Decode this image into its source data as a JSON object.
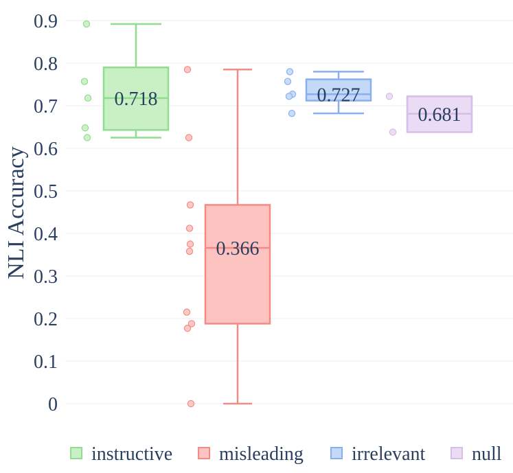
{
  "chart_data": {
    "type": "box",
    "ylabel": "NLI Accuracy",
    "ylim": [
      0,
      0.9
    ],
    "yticks": [
      "0",
      "0.1",
      "0.2",
      "0.3",
      "0.4",
      "0.5",
      "0.6",
      "0.7",
      "0.8",
      "0.9"
    ],
    "grid": true,
    "legend_position": "bottom",
    "series": [
      {
        "name": "instructive",
        "color": "#90dd8f",
        "fill": "#c9f0c4",
        "stats": {
          "min": 0.625,
          "q1": 0.643,
          "median": 0.718,
          "q3": 0.79,
          "max": 0.892
        },
        "median_label": "0.718",
        "points": [
          0.892,
          0.757,
          0.718,
          0.648,
          0.625
        ]
      },
      {
        "name": "misleading",
        "color": "#f48a84",
        "fill": "#fcc3c0",
        "stats": {
          "min": 0.0,
          "q1": 0.188,
          "median": 0.366,
          "q3": 0.467,
          "max": 0.785
        },
        "median_label": "0.366",
        "points": [
          0.785,
          0.625,
          0.467,
          0.412,
          0.375,
          0.358,
          0.215,
          0.188,
          0.177,
          0.0
        ]
      },
      {
        "name": "irrelevant",
        "color": "#88b0f0",
        "fill": "#c4d8f8",
        "stats": {
          "min": 0.682,
          "q1": 0.712,
          "median": 0.727,
          "q3": 0.762,
          "max": 0.78
        },
        "median_label": "0.727",
        "points": [
          0.78,
          0.757,
          0.727,
          0.722,
          0.682
        ]
      },
      {
        "name": "null",
        "color": "#d5bde8",
        "fill": "#eadcf4",
        "stats": {
          "min": 0.638,
          "q1": 0.638,
          "median": 0.681,
          "q3": 0.722,
          "max": 0.722
        },
        "median_label": "0.681",
        "points": [
          0.722,
          0.638
        ]
      }
    ]
  }
}
